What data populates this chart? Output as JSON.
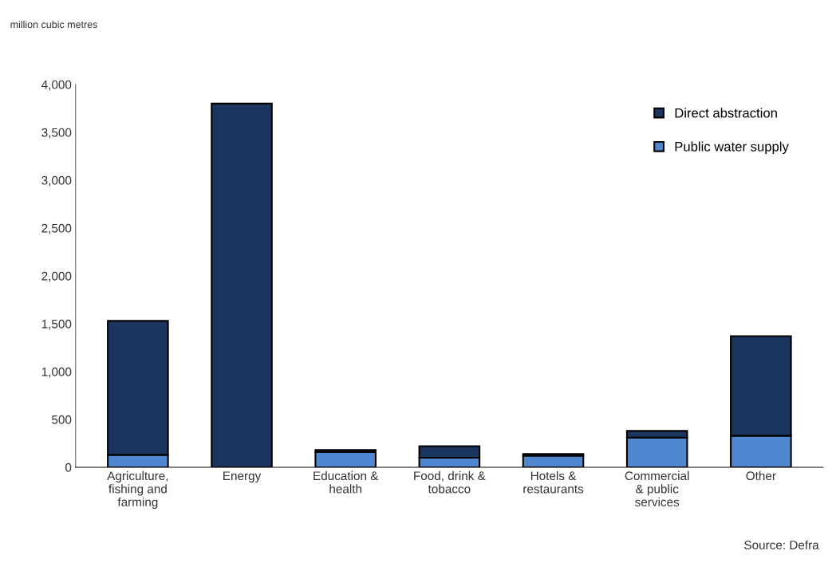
{
  "chart_data": {
    "type": "bar",
    "stacked": true,
    "categories": [
      "Agriculture,\nfishing and\nfarming",
      "Energy",
      "Education &\nhealth",
      "Food, drink &\ntobacco",
      "Hotels &\nrestaurants",
      "Commercial\n& public\nservices",
      "Other"
    ],
    "series": [
      {
        "name": "Public water supply",
        "color": "#4f88d0",
        "values": [
          130,
          null,
          160,
          100,
          120,
          310,
          330
        ]
      },
      {
        "name": "Direct abstraction",
        "color": "#1a355e",
        "values": [
          1400,
          3800,
          20,
          120,
          20,
          70,
          1040
        ]
      }
    ],
    "ylim": [
      0,
      4000
    ],
    "yticks": [
      {
        "value": 0,
        "label": "0"
      },
      {
        "value": 500,
        "label": "500"
      },
      {
        "value": 1000,
        "label": "1,000"
      },
      {
        "value": 1500,
        "label": "1,500"
      },
      {
        "value": 2000,
        "label": "2,000"
      },
      {
        "value": 2500,
        "label": "2,500"
      },
      {
        "value": 3000,
        "label": "3,000"
      },
      {
        "value": 3500,
        "label": "3,500"
      },
      {
        "value": 4000,
        "label": "4,000"
      }
    ],
    "legend": "top right",
    "grid": false,
    "annotations": [
      "million cubic metres",
      "Source: Defra"
    ]
  }
}
